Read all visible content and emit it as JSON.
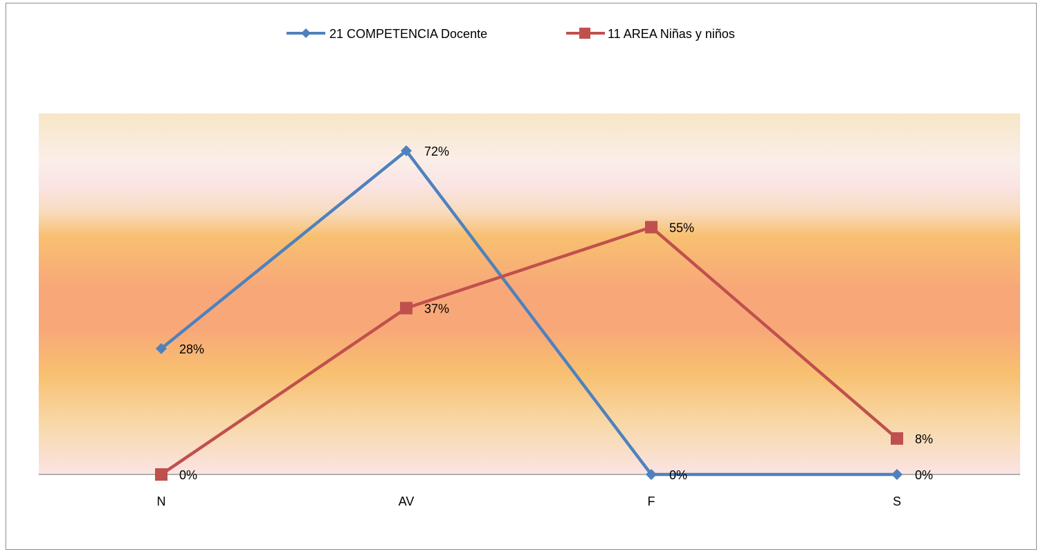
{
  "chart_data": {
    "type": "line",
    "categories": [
      "N",
      "AV",
      "F",
      "S"
    ],
    "series": [
      {
        "name": "21 COMPETENCIA Docente",
        "values": [
          28,
          72,
          0,
          0
        ],
        "labels": [
          "28%",
          "72%",
          "0%",
          "0%"
        ],
        "color": "#4f81bd",
        "marker": "diamond"
      },
      {
        "name": "11 AREA Niñas y niños",
        "values": [
          0,
          37,
          55,
          8
        ],
        "labels": [
          "0%",
          "37%",
          "55%",
          "8%"
        ],
        "color": "#c0504d",
        "marker": "square"
      }
    ],
    "ylim": [
      0,
      80
    ],
    "y_unit": "%",
    "legend": "top",
    "grid": false,
    "background": "vertical gradient: beige, pink, orange bands"
  }
}
